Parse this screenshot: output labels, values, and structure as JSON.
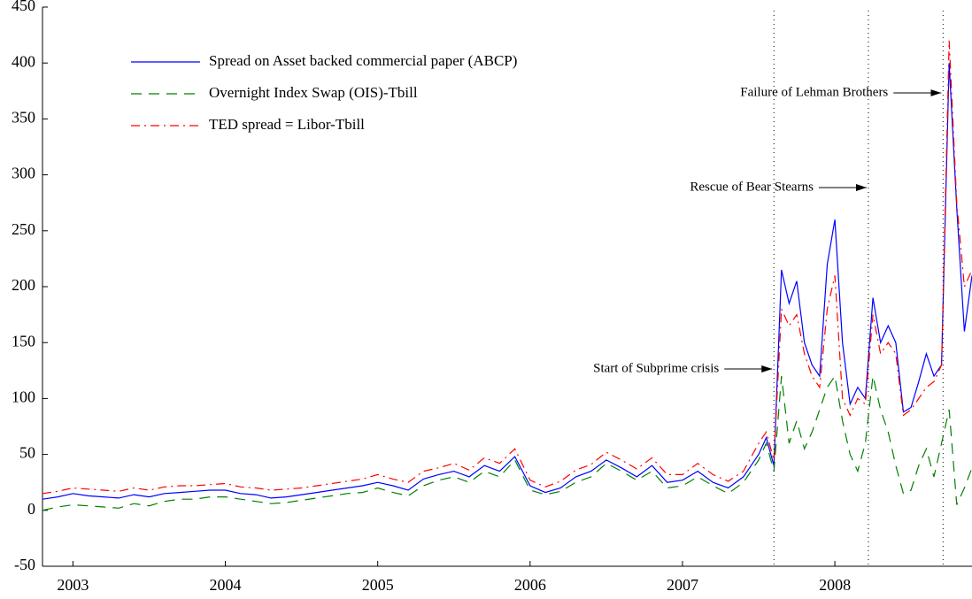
{
  "chart_data": {
    "type": "line",
    "x": [
      2002.8,
      2002.9,
      2003.0,
      2003.1,
      2003.2,
      2003.3,
      2003.4,
      2003.5,
      2003.6,
      2003.7,
      2003.8,
      2003.9,
      2004.0,
      2004.1,
      2004.2,
      2004.3,
      2004.4,
      2004.5,
      2004.6,
      2004.7,
      2004.8,
      2004.9,
      2005.0,
      2005.1,
      2005.2,
      2005.3,
      2005.4,
      2005.5,
      2005.6,
      2005.7,
      2005.8,
      2005.9,
      2006.0,
      2006.1,
      2006.2,
      2006.3,
      2006.4,
      2006.5,
      2006.6,
      2006.7,
      2006.8,
      2006.9,
      2007.0,
      2007.1,
      2007.2,
      2007.3,
      2007.4,
      2007.5,
      2007.55,
      2007.6,
      2007.65,
      2007.7,
      2007.75,
      2007.8,
      2007.85,
      2007.9,
      2007.95,
      2008.0,
      2008.05,
      2008.1,
      2008.15,
      2008.2,
      2008.25,
      2008.3,
      2008.35,
      2008.4,
      2008.45,
      2008.5,
      2008.55,
      2008.6,
      2008.65,
      2008.7,
      2008.75,
      2008.8,
      2008.85,
      2008.9
    ],
    "series": [
      {
        "name": "Spread on Asset backed commercial paper (ABCP)",
        "color": "#0000ff",
        "style": "solid",
        "values": [
          10,
          12,
          15,
          13,
          12,
          11,
          14,
          12,
          15,
          16,
          17,
          18,
          18,
          15,
          14,
          11,
          12,
          14,
          16,
          18,
          20,
          22,
          25,
          22,
          18,
          28,
          32,
          35,
          30,
          40,
          35,
          48,
          22,
          16,
          20,
          30,
          35,
          45,
          38,
          30,
          40,
          25,
          27,
          35,
          25,
          20,
          30,
          50,
          65,
          40,
          215,
          185,
          205,
          150,
          130,
          120,
          220,
          260,
          150,
          95,
          110,
          100,
          190,
          150,
          165,
          150,
          88,
          92,
          115,
          140,
          120,
          130,
          400,
          270,
          160,
          210
        ]
      },
      {
        "name": "Overnight Index Swap (OIS)-Tbill",
        "color": "#008000",
        "style": "dashed",
        "values": [
          0,
          3,
          5,
          4,
          3,
          2,
          6,
          4,
          8,
          10,
          10,
          12,
          12,
          10,
          8,
          6,
          7,
          9,
          11,
          13,
          15,
          16,
          20,
          16,
          13,
          22,
          27,
          30,
          25,
          35,
          30,
          45,
          18,
          14,
          17,
          25,
          30,
          42,
          35,
          27,
          35,
          20,
          22,
          30,
          22,
          15,
          25,
          45,
          60,
          35,
          120,
          60,
          80,
          55,
          70,
          90,
          110,
          120,
          80,
          50,
          35,
          60,
          120,
          90,
          70,
          40,
          15,
          18,
          40,
          55,
          30,
          60,
          90,
          5,
          20,
          38
        ]
      },
      {
        "name": "TED spread = Libor-Tbill",
        "color": "#ff0000",
        "style": "dashdot",
        "values": [
          15,
          17,
          20,
          19,
          18,
          17,
          20,
          18,
          21,
          22,
          22,
          23,
          24,
          21,
          20,
          18,
          19,
          20,
          22,
          24,
          26,
          28,
          32,
          28,
          25,
          35,
          38,
          42,
          36,
          47,
          42,
          55,
          27,
          21,
          26,
          36,
          41,
          52,
          45,
          37,
          47,
          32,
          32,
          42,
          32,
          26,
          35,
          60,
          70,
          45,
          180,
          165,
          175,
          140,
          120,
          110,
          180,
          210,
          100,
          85,
          100,
          95,
          175,
          140,
          150,
          140,
          85,
          90,
          100,
          110,
          115,
          130,
          420,
          275,
          200,
          215
        ]
      }
    ],
    "xlim": [
      2002.8,
      2008.9
    ],
    "xticks": [
      2003,
      2004,
      2005,
      2006,
      2007,
      2008
    ],
    "ylim": [
      -50,
      450
    ],
    "yticks": [
      -50,
      0,
      50,
      100,
      150,
      200,
      250,
      300,
      350,
      400,
      450
    ],
    "annotations": [
      {
        "text": "Start of Subprime crisis",
        "x": 2007.6
      },
      {
        "text": "Rescue of Bear Stearns",
        "x": 2008.22
      },
      {
        "text": "Failure of Lehman Brothers",
        "x": 2008.71
      }
    ]
  }
}
